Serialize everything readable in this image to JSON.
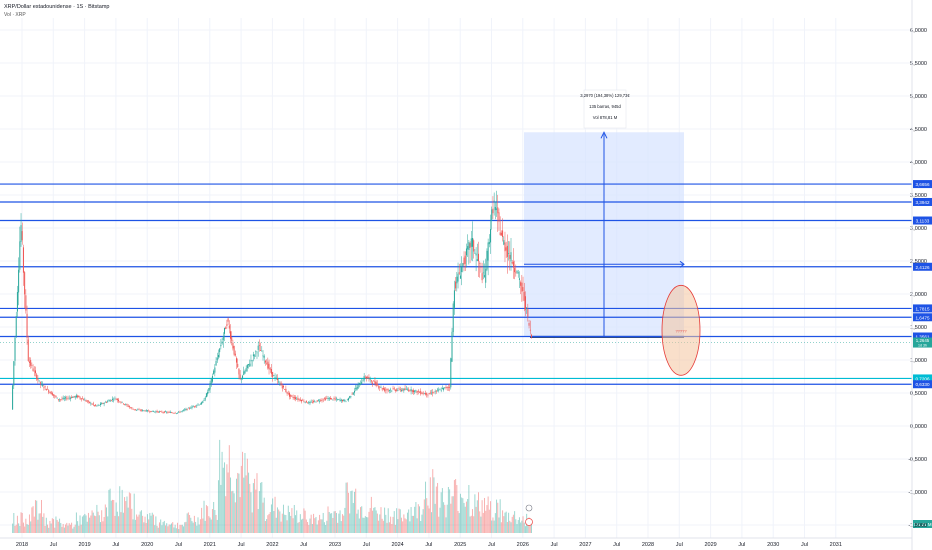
{
  "header": {
    "title": "XRP/Dollar estadounidense · 1S · Bitstamp",
    "volume_label": "Vol · XRP"
  },
  "measure_box": {
    "line1": "3,2970 (194,38%) 129,73¢",
    "line2": "135 barras, 945d",
    "line3": "Vol 878,81 M",
    "zone_label": "?????"
  },
  "colors": {
    "up": "#26a69a",
    "down": "#ef5350",
    "level": "#1e53e5",
    "measure_fill": "#d6e2ff",
    "cyan_level": "#00bcd4",
    "zone": "#f4c59e"
  },
  "chart_data": {
    "type": "candlestick",
    "title": "XRP/Dollar estadounidense · 1S · Bitstamp",
    "x_ticks": [
      "2018",
      "Jul",
      "2019",
      "Jul",
      "2020",
      "Jul",
      "2021",
      "Jul",
      "2022",
      "Jul",
      "2023",
      "Jul",
      "2024",
      "Jul",
      "2025",
      "Jul",
      "2026",
      "Jul",
      "2027",
      "Jul",
      "2028",
      "Jul",
      "2029",
      "Jul",
      "2030",
      "Jul",
      "2031"
    ],
    "y_ticks": [
      "6,0000",
      "5,5000",
      "5,0000",
      "4,5000",
      "4,0000",
      "3,5000",
      "3,0000",
      "2,5000",
      "2,0000",
      "1,5000",
      "1,0000",
      "0,5000",
      "0,0000",
      "-0,5000",
      "-1,0000",
      "-1,5000"
    ],
    "ylim": [
      -1.5,
      6.0
    ],
    "price_path": [
      {
        "x": 2017.85,
        "y": 0.25
      },
      {
        "x": 2018.0,
        "y": 3.1
      },
      {
        "x": 2018.12,
        "y": 1.0
      },
      {
        "x": 2018.3,
        "y": 0.65
      },
      {
        "x": 2018.6,
        "y": 0.4
      },
      {
        "x": 2018.9,
        "y": 0.45
      },
      {
        "x": 2019.2,
        "y": 0.3
      },
      {
        "x": 2019.5,
        "y": 0.42
      },
      {
        "x": 2019.8,
        "y": 0.25
      },
      {
        "x": 2020.1,
        "y": 0.22
      },
      {
        "x": 2020.5,
        "y": 0.2
      },
      {
        "x": 2020.9,
        "y": 0.35
      },
      {
        "x": 2021.0,
        "y": 0.55
      },
      {
        "x": 2021.3,
        "y": 1.6
      },
      {
        "x": 2021.5,
        "y": 0.7
      },
      {
        "x": 2021.8,
        "y": 1.2
      },
      {
        "x": 2022.0,
        "y": 0.8
      },
      {
        "x": 2022.3,
        "y": 0.45
      },
      {
        "x": 2022.6,
        "y": 0.35
      },
      {
        "x": 2022.9,
        "y": 0.42
      },
      {
        "x": 2023.2,
        "y": 0.38
      },
      {
        "x": 2023.5,
        "y": 0.75
      },
      {
        "x": 2023.8,
        "y": 0.55
      },
      {
        "x": 2024.2,
        "y": 0.55
      },
      {
        "x": 2024.5,
        "y": 0.48
      },
      {
        "x": 2024.85,
        "y": 0.6
      },
      {
        "x": 2024.92,
        "y": 2.1
      },
      {
        "x": 2025.0,
        "y": 2.3
      },
      {
        "x": 2025.2,
        "y": 2.8
      },
      {
        "x": 2025.4,
        "y": 2.2
      },
      {
        "x": 2025.55,
        "y": 3.4
      },
      {
        "x": 2025.7,
        "y": 2.8
      },
      {
        "x": 2025.9,
        "y": 2.4
      },
      {
        "x": 2026.05,
        "y": 1.9
      },
      {
        "x": 2026.15,
        "y": 1.35
      }
    ],
    "volume": [
      0.5,
      0.8,
      0.4,
      0.3,
      0.5,
      0.7,
      1.2,
      1.0,
      0.6,
      0.4,
      0.3,
      0.5,
      0.8,
      2.5,
      2.0,
      1.5,
      0.9,
      0.7,
      0.6,
      0.5,
      0.7,
      1.3,
      0.9,
      0.7,
      0.6,
      0.8,
      1.6,
      1.2,
      1.4,
      1.0,
      0.9,
      0.6,
      0.5
    ],
    "horizontal_levels": [
      {
        "value": 3.6656,
        "label": "3,6656",
        "color": "level"
      },
      {
        "value": 3.3942,
        "label": "3,3942",
        "color": "level"
      },
      {
        "value": 3.1133,
        "label": "3,1133",
        "color": "level"
      },
      {
        "value": 2.4126,
        "label": "2,4126",
        "color": "level"
      },
      {
        "value": 1.7815,
        "label": "1,7815",
        "color": "level"
      },
      {
        "value": 1.6475,
        "label": "1,6475",
        "color": "level"
      },
      {
        "value": 1.3561,
        "label": "1,3561",
        "color": "level"
      },
      {
        "value": 0.7206,
        "label": "0,7206",
        "color": "cyan_level"
      },
      {
        "value": 0.633,
        "label": "0,6330",
        "color": "level"
      }
    ],
    "current_price": {
      "value": 1.2645,
      "label": "1,2645",
      "sub": "1d 3h"
    },
    "volume_readout": "711,21 M",
    "grid": true,
    "legend": "none"
  }
}
